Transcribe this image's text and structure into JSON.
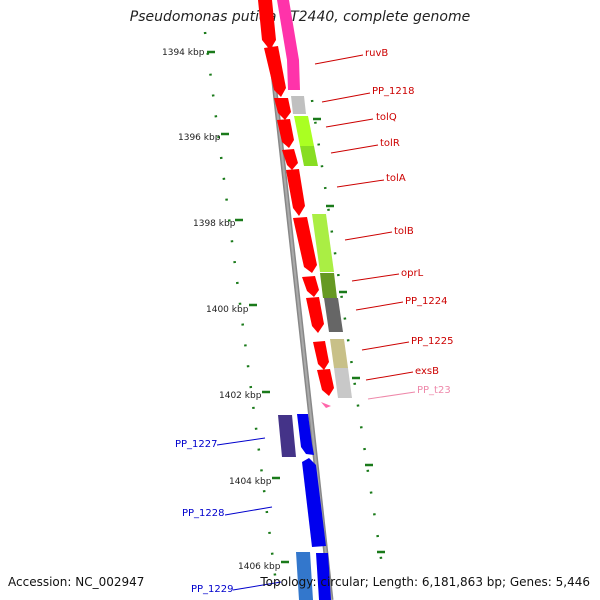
{
  "title": "Pseudomonas putida KT2440, complete genome",
  "accession": "Accession: NC_002947",
  "summary": "Topology: circular; Length: 6,181,863 bp; Genes: 5,446",
  "ruler_labels": [
    "1394 kbp",
    "1396 kbp",
    "1398 kbp",
    "1400 kbp",
    "1402 kbp",
    "1404 kbp",
    "1406 kbp"
  ],
  "gene_labels": [
    {
      "name": "ruvB",
      "color": "#cc0000"
    },
    {
      "name": "PP_1218",
      "color": "#cc0000"
    },
    {
      "name": "tolQ",
      "color": "#cc0000"
    },
    {
      "name": "tolR",
      "color": "#cc0000"
    },
    {
      "name": "tolA",
      "color": "#cc0000"
    },
    {
      "name": "tolB",
      "color": "#cc0000"
    },
    {
      "name": "oprL",
      "color": "#cc0000"
    },
    {
      "name": "PP_1224",
      "color": "#cc0000"
    },
    {
      "name": "PP_1225",
      "color": "#cc0000"
    },
    {
      "name": "exsB",
      "color": "#cc0000"
    },
    {
      "name": "PP_t23",
      "color": "#ee88aa"
    },
    {
      "name": "PP_1227",
      "color": "#0000cc"
    },
    {
      "name": "PP_1228",
      "color": "#0000cc"
    },
    {
      "name": "PP_1229",
      "color": "#0000cc"
    }
  ],
  "colors": {
    "forward_strand": "#0000ee",
    "reverse_strand": "#ff0000",
    "backbone": "#888888",
    "ruler_ticks": "#1a7a1a"
  }
}
